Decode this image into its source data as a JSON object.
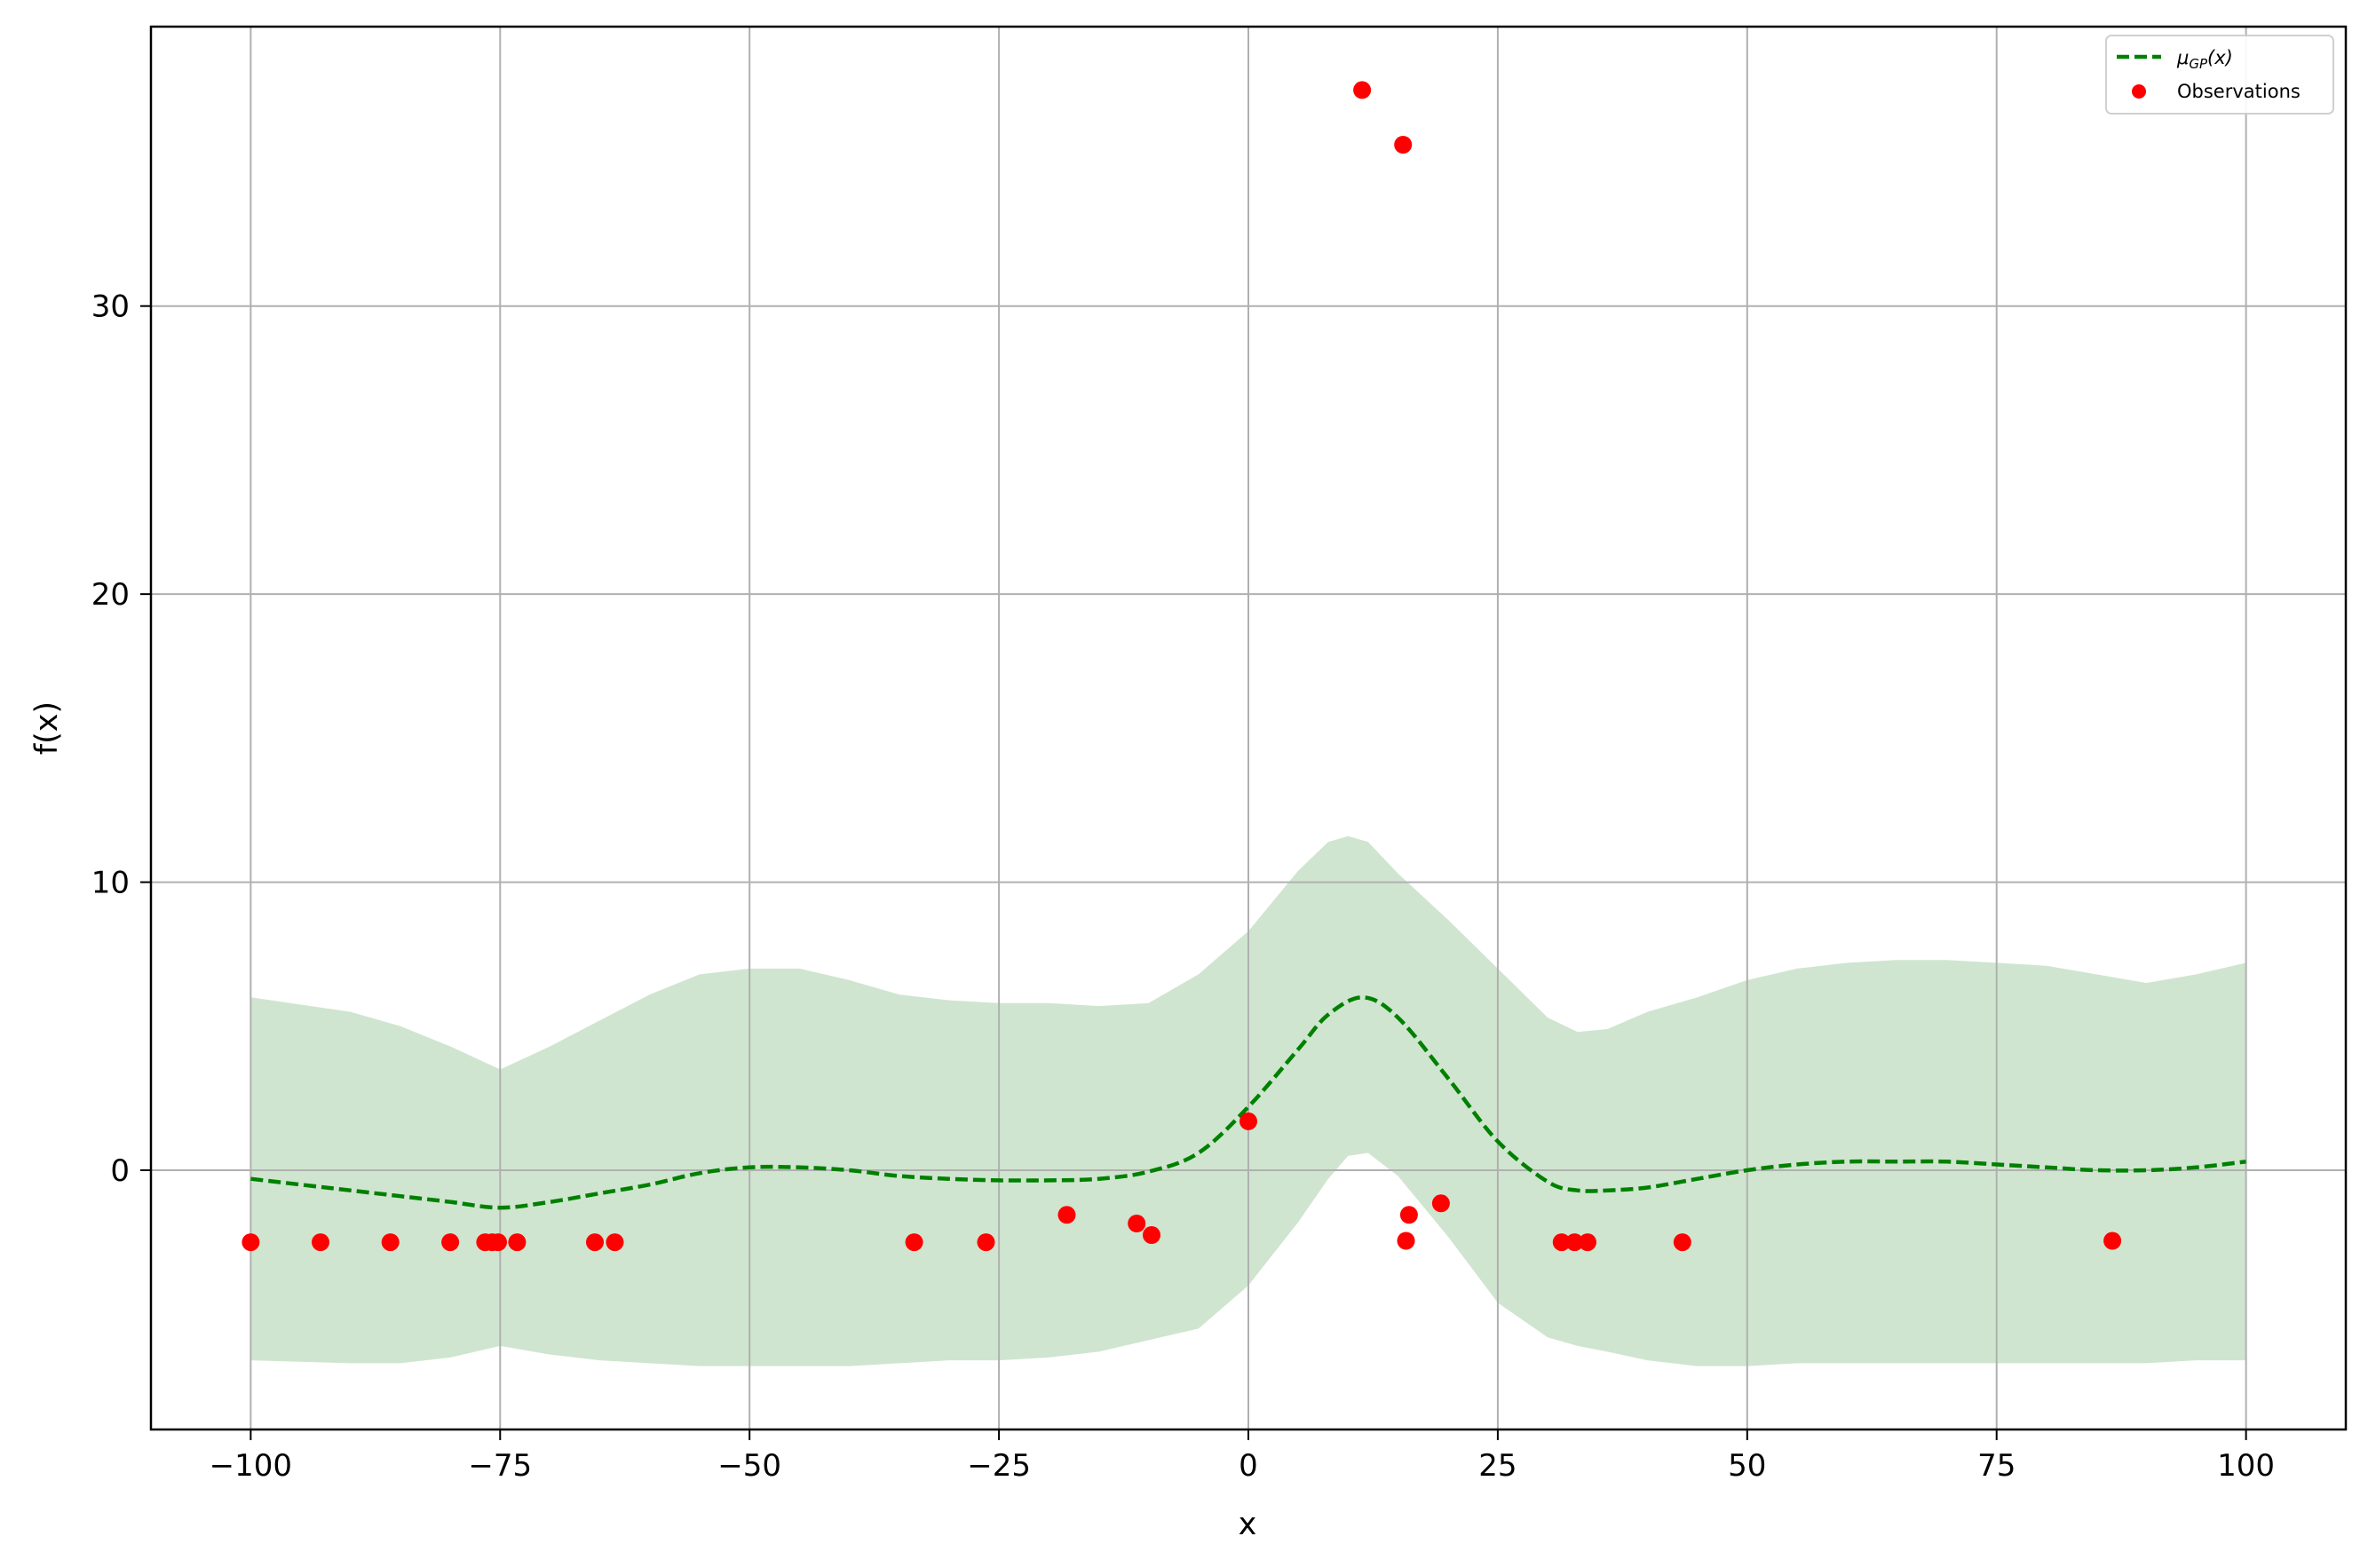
{
  "chart_data": {
    "type": "line",
    "title": "",
    "xlabel": "x",
    "ylabel": "f(x)",
    "xlim": [
      -110,
      110
    ],
    "ylim": [
      -9,
      39.7
    ],
    "x_ticks": [
      -100,
      -75,
      -50,
      -25,
      0,
      25,
      50,
      75,
      100
    ],
    "x_tick_labels": [
      "−100",
      "−75",
      "−50",
      "−25",
      "0",
      "25",
      "50",
      "75",
      "100"
    ],
    "y_ticks": [
      0,
      10,
      20,
      30
    ],
    "y_tick_labels": [
      "0",
      "10",
      "20",
      "30"
    ],
    "grid": true,
    "legend_position": "top-right",
    "colors": {
      "mean": "#008000",
      "band": "#cfe5cf",
      "observations": "#ff0000",
      "grid": "#b0b0b0",
      "axes": "#000000"
    },
    "series": [
      {
        "name": "μGP(x)",
        "legend_main": "μ",
        "legend_sub": "GP",
        "legend_tail": "(x)",
        "style": "dashed",
        "x": [
          -100,
          -90,
          -85,
          -80,
          -75,
          -70,
          -65,
          -60,
          -55,
          -50,
          -45,
          -40,
          -35,
          -30,
          -25,
          -20,
          -15,
          -10,
          -5,
          0,
          5,
          8,
          11.5,
          15,
          20,
          25,
          30,
          33,
          36,
          40,
          45,
          50,
          55,
          60,
          65,
          70,
          75,
          80,
          85,
          90,
          95,
          100
        ],
        "y": [
          -0.3,
          -0.7,
          -0.9,
          -1.1,
          -1.3,
          -1.1,
          -0.8,
          -0.5,
          -0.1,
          0.1,
          0.1,
          0.0,
          -0.2,
          -0.3,
          -0.35,
          -0.35,
          -0.3,
          -0.05,
          0.6,
          2.2,
          4.2,
          5.4,
          6.0,
          5.3,
          3.2,
          1.0,
          -0.4,
          -0.7,
          -0.7,
          -0.6,
          -0.3,
          0.0,
          0.2,
          0.3,
          0.3,
          0.3,
          0.2,
          0.1,
          0.0,
          0.0,
          0.1,
          0.3
        ]
      },
      {
        "name": "confidence band",
        "style": "fill",
        "x": [
          -100,
          -90,
          -85,
          -80,
          -75,
          -70,
          -65,
          -60,
          -55,
          -50,
          -45,
          -40,
          -35,
          -30,
          -25,
          -20,
          -15,
          -10,
          -5,
          0,
          5,
          8,
          10,
          12,
          15,
          20,
          25,
          30,
          33,
          36,
          40,
          45,
          50,
          55,
          60,
          65,
          70,
          75,
          80,
          85,
          90,
          95,
          100
        ],
        "upper": [
          6.0,
          5.5,
          5.0,
          4.3,
          3.5,
          4.3,
          5.2,
          6.1,
          6.8,
          7.0,
          7.0,
          6.6,
          6.1,
          5.9,
          5.8,
          5.8,
          5.7,
          5.8,
          6.8,
          8.3,
          10.4,
          11.4,
          11.6,
          11.4,
          10.3,
          8.7,
          7.0,
          5.3,
          4.8,
          4.9,
          5.5,
          6.0,
          6.6,
          7.0,
          7.2,
          7.3,
          7.3,
          7.2,
          7.1,
          6.8,
          6.5,
          6.8,
          7.2
        ],
        "lower": [
          -6.6,
          -6.7,
          -6.7,
          -6.5,
          -6.1,
          -6.4,
          -6.6,
          -6.7,
          -6.8,
          -6.8,
          -6.8,
          -6.8,
          -6.7,
          -6.6,
          -6.6,
          -6.5,
          -6.3,
          -5.9,
          -5.5,
          -4.0,
          -1.8,
          -0.3,
          0.5,
          0.6,
          -0.2,
          -2.3,
          -4.6,
          -5.8,
          -6.1,
          -6.3,
          -6.6,
          -6.8,
          -6.8,
          -6.7,
          -6.7,
          -6.7,
          -6.7,
          -6.7,
          -6.7,
          -6.7,
          -6.7,
          -6.6,
          -6.6
        ]
      },
      {
        "name": "Observations",
        "style": "points",
        "x": [
          -100,
          -93,
          -86,
          -80,
          -76.5,
          -75.8,
          -75.2,
          -73.3,
          -65.5,
          -63.5,
          -33.5,
          -26.3,
          -18.2,
          -11.2,
          -9.7,
          0,
          11.4,
          15.5,
          15.8,
          16.1,
          19.3,
          31.4,
          32.7,
          34,
          43.5,
          86.6
        ],
        "y": [
          -2.5,
          -2.5,
          -2.5,
          -2.5,
          -2.5,
          -2.5,
          -2.5,
          -2.5,
          -2.5,
          -2.5,
          -2.5,
          -2.5,
          -1.55,
          -1.85,
          -2.25,
          1.7,
          37.5,
          35.6,
          -2.45,
          -1.55,
          -1.15,
          -2.5,
          -2.5,
          -2.5,
          -2.5,
          -2.45
        ]
      }
    ]
  }
}
